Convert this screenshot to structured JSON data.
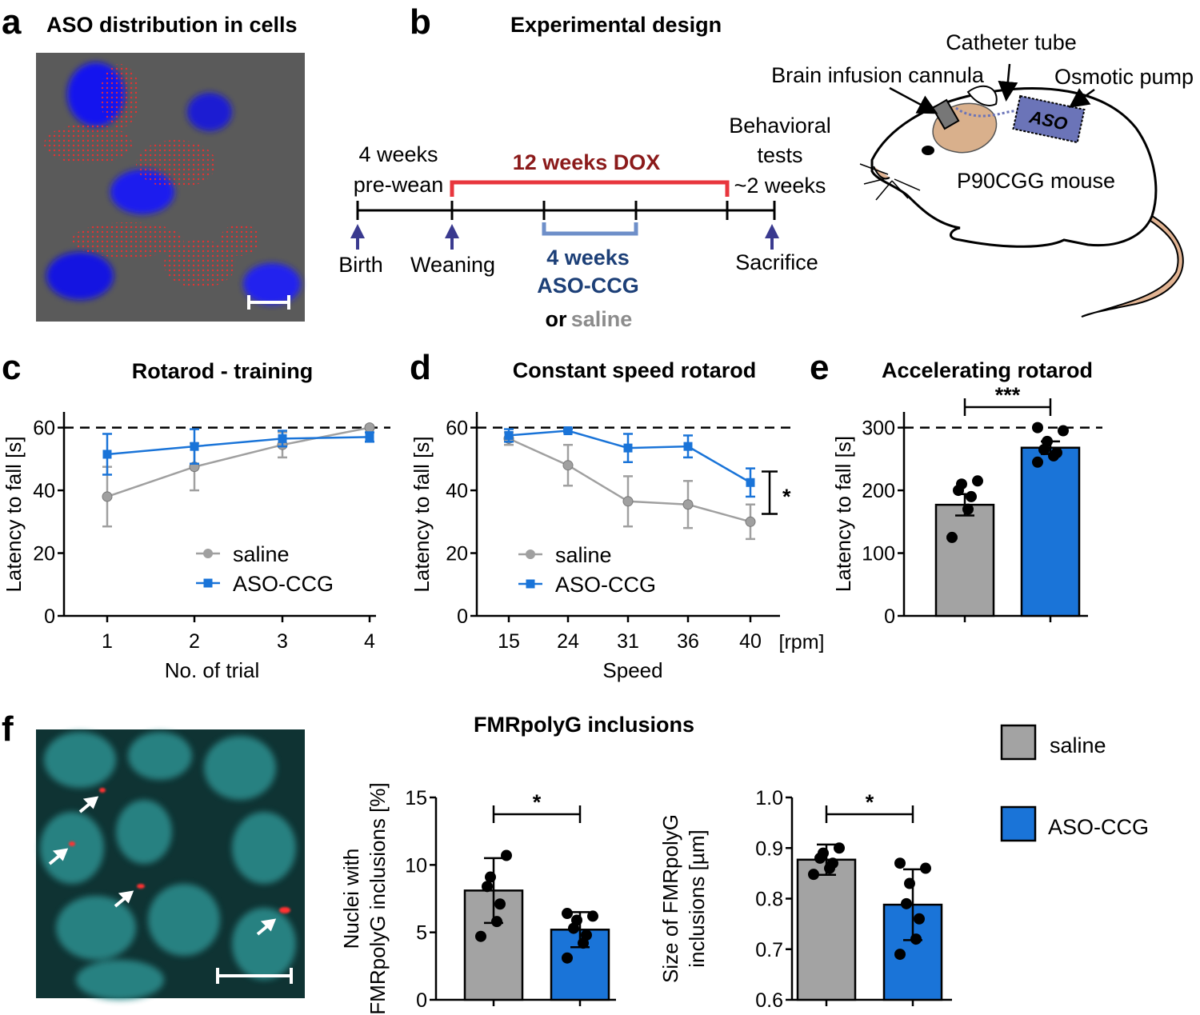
{
  "panel_letters": {
    "a": "a",
    "b": "b",
    "c": "c",
    "d": "d",
    "e": "e",
    "f": "f"
  },
  "panel_a": {
    "title": "ASO distribution in cells"
  },
  "panel_b": {
    "title": "Experimental design",
    "dox_label": "12 weeks DOX",
    "pre_wean_1": "4 weeks",
    "pre_wean_2": "pre-wean",
    "behav_1": "Behavioral",
    "behav_2": "tests",
    "behav_3": "~2 weeks",
    "birth": "Birth",
    "weaning": "Weaning",
    "aso_1": "4 weeks",
    "aso_2": "ASO-CCG",
    "or_word": "or",
    "saline_word": "saline",
    "sacrifice": "Sacrifice",
    "catheter": "Catheter tube",
    "cannula": "Brain infusion cannula",
    "pump": "Osmotic pump",
    "aso_box": "ASO",
    "mouse": "P90CGG mouse",
    "colors": {
      "dox": "#e8363d",
      "dox_text": "#8b1a1a",
      "aso_text": "#1c3f77",
      "saline_text": "#8c8c8c",
      "bracket": "#6e8fc9",
      "arrow": "#3a3a8f",
      "pump": "#6b74b8",
      "brain": "#d9b08c",
      "tail": "#e2b493"
    }
  },
  "colors": {
    "saline": "#a0a0a0",
    "aso": "#1a74d8",
    "saline_bar": "#a3a3a3",
    "aso_bar": "#1a74d8"
  },
  "chart_data": [
    {
      "id": "c",
      "type": "line",
      "title": "Rotarod - training",
      "xlabel": "No. of trial",
      "ylabel": "Latency to fall [s]",
      "categories": [
        "1",
        "2",
        "3",
        "4"
      ],
      "ylim": [
        0,
        65
      ],
      "yticks": [
        0,
        20,
        40,
        60
      ],
      "reference_line": 60,
      "series": [
        {
          "name": "saline",
          "values": [
            38,
            47.5,
            54.5,
            60
          ],
          "errors": [
            9.5,
            7.5,
            4,
            0.5
          ]
        },
        {
          "name": "ASO-CCG",
          "values": [
            51.5,
            54,
            56.5,
            57
          ],
          "errors": [
            6.5,
            5.5,
            2.5,
            1.5
          ]
        }
      ]
    },
    {
      "id": "d",
      "type": "line",
      "title": "Constant speed rotarod",
      "xlabel": "Speed",
      "ylabel": "Latency to fall [s]",
      "x_unit": "[rpm]",
      "categories": [
        "15",
        "24",
        "31",
        "36",
        "40"
      ],
      "ylim": [
        0,
        65
      ],
      "yticks": [
        0,
        20,
        40,
        60
      ],
      "reference_line": 60,
      "significance": "*",
      "series": [
        {
          "name": "saline",
          "values": [
            56.5,
            48,
            36.5,
            35.5,
            30
          ],
          "errors": [
            2,
            6.5,
            8,
            7.5,
            5.5
          ]
        },
        {
          "name": "ASO-CCG",
          "values": [
            57.5,
            59,
            53.5,
            54,
            42.5
          ],
          "errors": [
            2,
            0.5,
            4.5,
            3.5,
            4.5
          ]
        }
      ]
    },
    {
      "id": "e",
      "type": "bar",
      "title": "Accelerating rotarod",
      "ylabel": "Latency to fall [s]",
      "categories": [
        "saline",
        "ASO-CCG"
      ],
      "ylim": [
        0,
        325
      ],
      "yticks": [
        0,
        100,
        200,
        300
      ],
      "reference_line": 300,
      "significance": "***",
      "values": [
        177,
        268
      ],
      "errors": [
        17,
        10
      ],
      "points": [
        [
          125,
          170,
          190,
          200,
          210,
          215
        ],
        [
          245,
          255,
          260,
          265,
          278,
          295,
          300
        ]
      ]
    },
    {
      "id": "f1",
      "type": "bar",
      "title": "FMRpolyG inclusions",
      "ylabel": [
        "Nuclei with",
        "FMRpolyG inclusions [%]"
      ],
      "categories": [
        "saline",
        "ASO-CCG"
      ],
      "ylim": [
        0,
        15
      ],
      "yticks": [
        0,
        5,
        10,
        15
      ],
      "significance": "*",
      "values": [
        8.1,
        5.2
      ],
      "errors": [
        2.4,
        1.3
      ],
      "points": [
        [
          4.7,
          5.8,
          7.1,
          8.4,
          9.1,
          10.7
        ],
        [
          3.1,
          4.2,
          4.8,
          5.3,
          5.9,
          6.2,
          6.4
        ]
      ]
    },
    {
      "id": "f2",
      "type": "bar",
      "ylabel": [
        "Size of FMRpolyG",
        "inclusions [µm]"
      ],
      "categories": [
        "saline",
        "ASO-CCG"
      ],
      "ylim": [
        0.6,
        1.0
      ],
      "yticks": [
        0.6,
        0.7,
        0.8,
        0.9,
        1.0
      ],
      "ytick_labels": [
        "0.6",
        "0.7",
        "0.8",
        "0.9",
        "1.0"
      ],
      "significance": "*",
      "values": [
        0.877,
        0.788
      ],
      "errors": [
        0.03,
        0.07
      ],
      "points": [
        [
          0.848,
          0.86,
          0.87,
          0.88,
          0.89,
          0.9
        ],
        [
          0.69,
          0.72,
          0.76,
          0.79,
          0.83,
          0.86,
          0.87
        ]
      ]
    }
  ],
  "legend_f": {
    "saline": "saline",
    "aso": "ASO-CCG"
  }
}
